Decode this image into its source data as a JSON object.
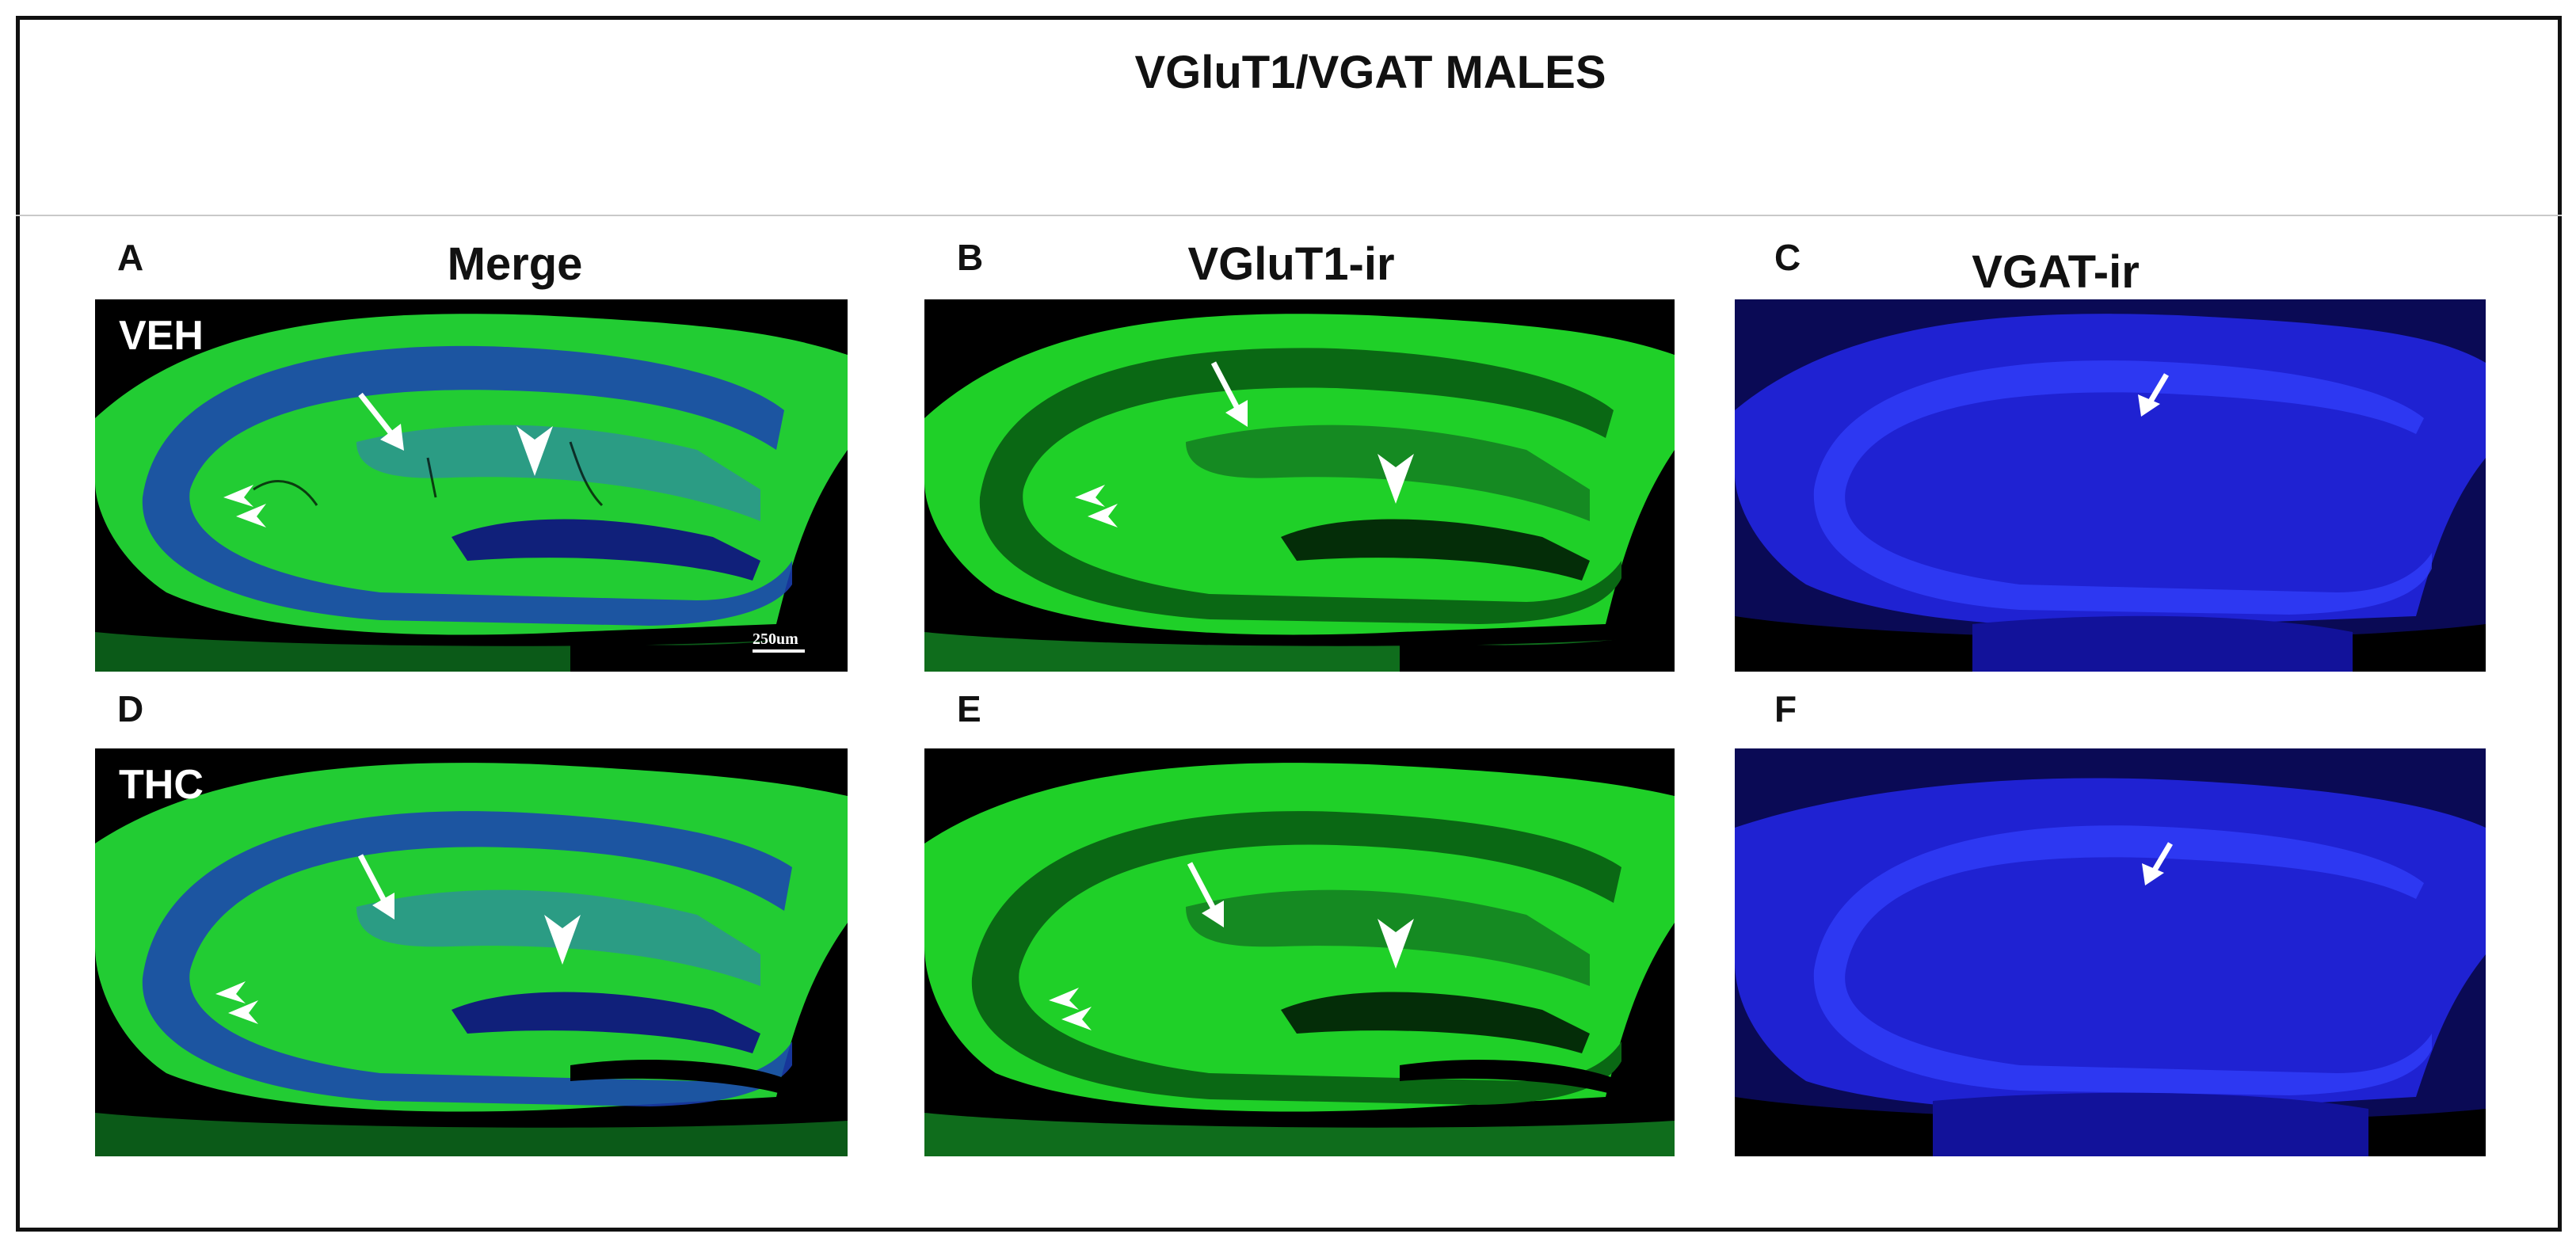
{
  "title": "VGluT1/VGAT MALES",
  "columns": [
    "Merge",
    "VGluT1-ir",
    "VGAT-ir"
  ],
  "rows": [
    "VEH",
    "THC"
  ],
  "panel_letters": [
    "A",
    "B",
    "C",
    "D",
    "E",
    "F"
  ],
  "scale_bar": "250um",
  "colors": {
    "vglut1": "#22dd22",
    "vgat": "#1f2ae0",
    "frame": "#111111"
  },
  "icons": [
    "arrow-icon",
    "arrowhead-icon"
  ]
}
